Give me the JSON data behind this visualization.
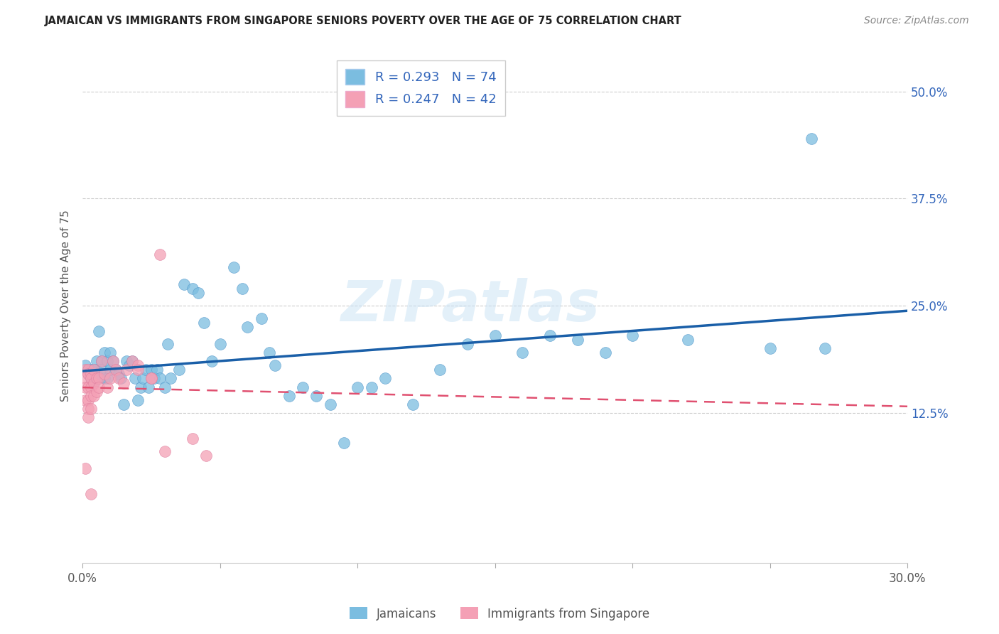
{
  "title": "JAMAICAN VS IMMIGRANTS FROM SINGAPORE SENIORS POVERTY OVER THE AGE OF 75 CORRELATION CHART",
  "source": "Source: ZipAtlas.com",
  "ylabel": "Seniors Poverty Over the Age of 75",
  "jamaicans_color": "#7bbde0",
  "singapore_color": "#f4a0b5",
  "jamaicans_line_color": "#1a5fa8",
  "singapore_line_color": "#e05070",
  "R_jamaicans": 0.293,
  "N_jamaicans": 74,
  "R_singapore": 0.247,
  "N_singapore": 42,
  "watermark": "ZIPatlas",
  "xlim": [
    0.0,
    0.3
  ],
  "ylim": [
    -0.05,
    0.55
  ],
  "yticks": [
    0.0,
    0.125,
    0.25,
    0.375,
    0.5
  ],
  "ytick_right_labels": [
    "",
    "12.5%",
    "25.0%",
    "37.5%",
    "50.0%"
  ],
  "xticks": [
    0.0,
    0.05,
    0.1,
    0.15,
    0.2,
    0.25,
    0.3
  ],
  "xtick_labels": [
    "0.0%",
    "",
    "",
    "",
    "",
    "",
    "30.0%"
  ],
  "jamaicans_x": [
    0.001,
    0.002,
    0.003,
    0.003,
    0.004,
    0.004,
    0.005,
    0.005,
    0.005,
    0.006,
    0.006,
    0.007,
    0.007,
    0.008,
    0.008,
    0.009,
    0.009,
    0.01,
    0.01,
    0.011,
    0.012,
    0.013,
    0.014,
    0.015,
    0.016,
    0.017,
    0.018,
    0.019,
    0.02,
    0.021,
    0.022,
    0.023,
    0.024,
    0.025,
    0.026,
    0.027,
    0.028,
    0.03,
    0.031,
    0.032,
    0.035,
    0.037,
    0.04,
    0.042,
    0.044,
    0.047,
    0.05,
    0.055,
    0.058,
    0.06,
    0.065,
    0.068,
    0.07,
    0.075,
    0.08,
    0.085,
    0.09,
    0.095,
    0.1,
    0.105,
    0.11,
    0.12,
    0.13,
    0.14,
    0.15,
    0.16,
    0.17,
    0.18,
    0.19,
    0.2,
    0.22,
    0.25,
    0.265,
    0.27
  ],
  "jamaicans_y": [
    0.18,
    0.17,
    0.175,
    0.165,
    0.16,
    0.175,
    0.185,
    0.175,
    0.17,
    0.165,
    0.22,
    0.185,
    0.175,
    0.165,
    0.195,
    0.185,
    0.165,
    0.195,
    0.175,
    0.185,
    0.175,
    0.17,
    0.165,
    0.135,
    0.185,
    0.18,
    0.185,
    0.165,
    0.14,
    0.155,
    0.165,
    0.175,
    0.155,
    0.175,
    0.165,
    0.175,
    0.165,
    0.155,
    0.205,
    0.165,
    0.175,
    0.275,
    0.27,
    0.265,
    0.23,
    0.185,
    0.205,
    0.295,
    0.27,
    0.225,
    0.235,
    0.195,
    0.18,
    0.145,
    0.155,
    0.145,
    0.135,
    0.09,
    0.155,
    0.155,
    0.165,
    0.135,
    0.175,
    0.205,
    0.215,
    0.195,
    0.215,
    0.21,
    0.195,
    0.215,
    0.21,
    0.2,
    0.445,
    0.2
  ],
  "singapore_x": [
    0.001,
    0.001,
    0.001,
    0.001,
    0.001,
    0.002,
    0.002,
    0.002,
    0.002,
    0.002,
    0.002,
    0.003,
    0.003,
    0.003,
    0.003,
    0.003,
    0.004,
    0.004,
    0.004,
    0.005,
    0.005,
    0.006,
    0.006,
    0.007,
    0.008,
    0.009,
    0.01,
    0.011,
    0.012,
    0.013,
    0.015,
    0.016,
    0.018,
    0.02,
    0.025,
    0.028,
    0.02,
    0.025,
    0.03,
    0.04,
    0.045,
    0.003
  ],
  "singapore_y": [
    0.175,
    0.165,
    0.155,
    0.14,
    0.06,
    0.175,
    0.17,
    0.155,
    0.14,
    0.13,
    0.12,
    0.17,
    0.165,
    0.155,
    0.145,
    0.13,
    0.175,
    0.16,
    0.145,
    0.165,
    0.15,
    0.165,
    0.155,
    0.185,
    0.17,
    0.155,
    0.165,
    0.185,
    0.175,
    0.165,
    0.16,
    0.175,
    0.185,
    0.18,
    0.165,
    0.31,
    0.175,
    0.165,
    0.08,
    0.095,
    0.075,
    0.03
  ]
}
